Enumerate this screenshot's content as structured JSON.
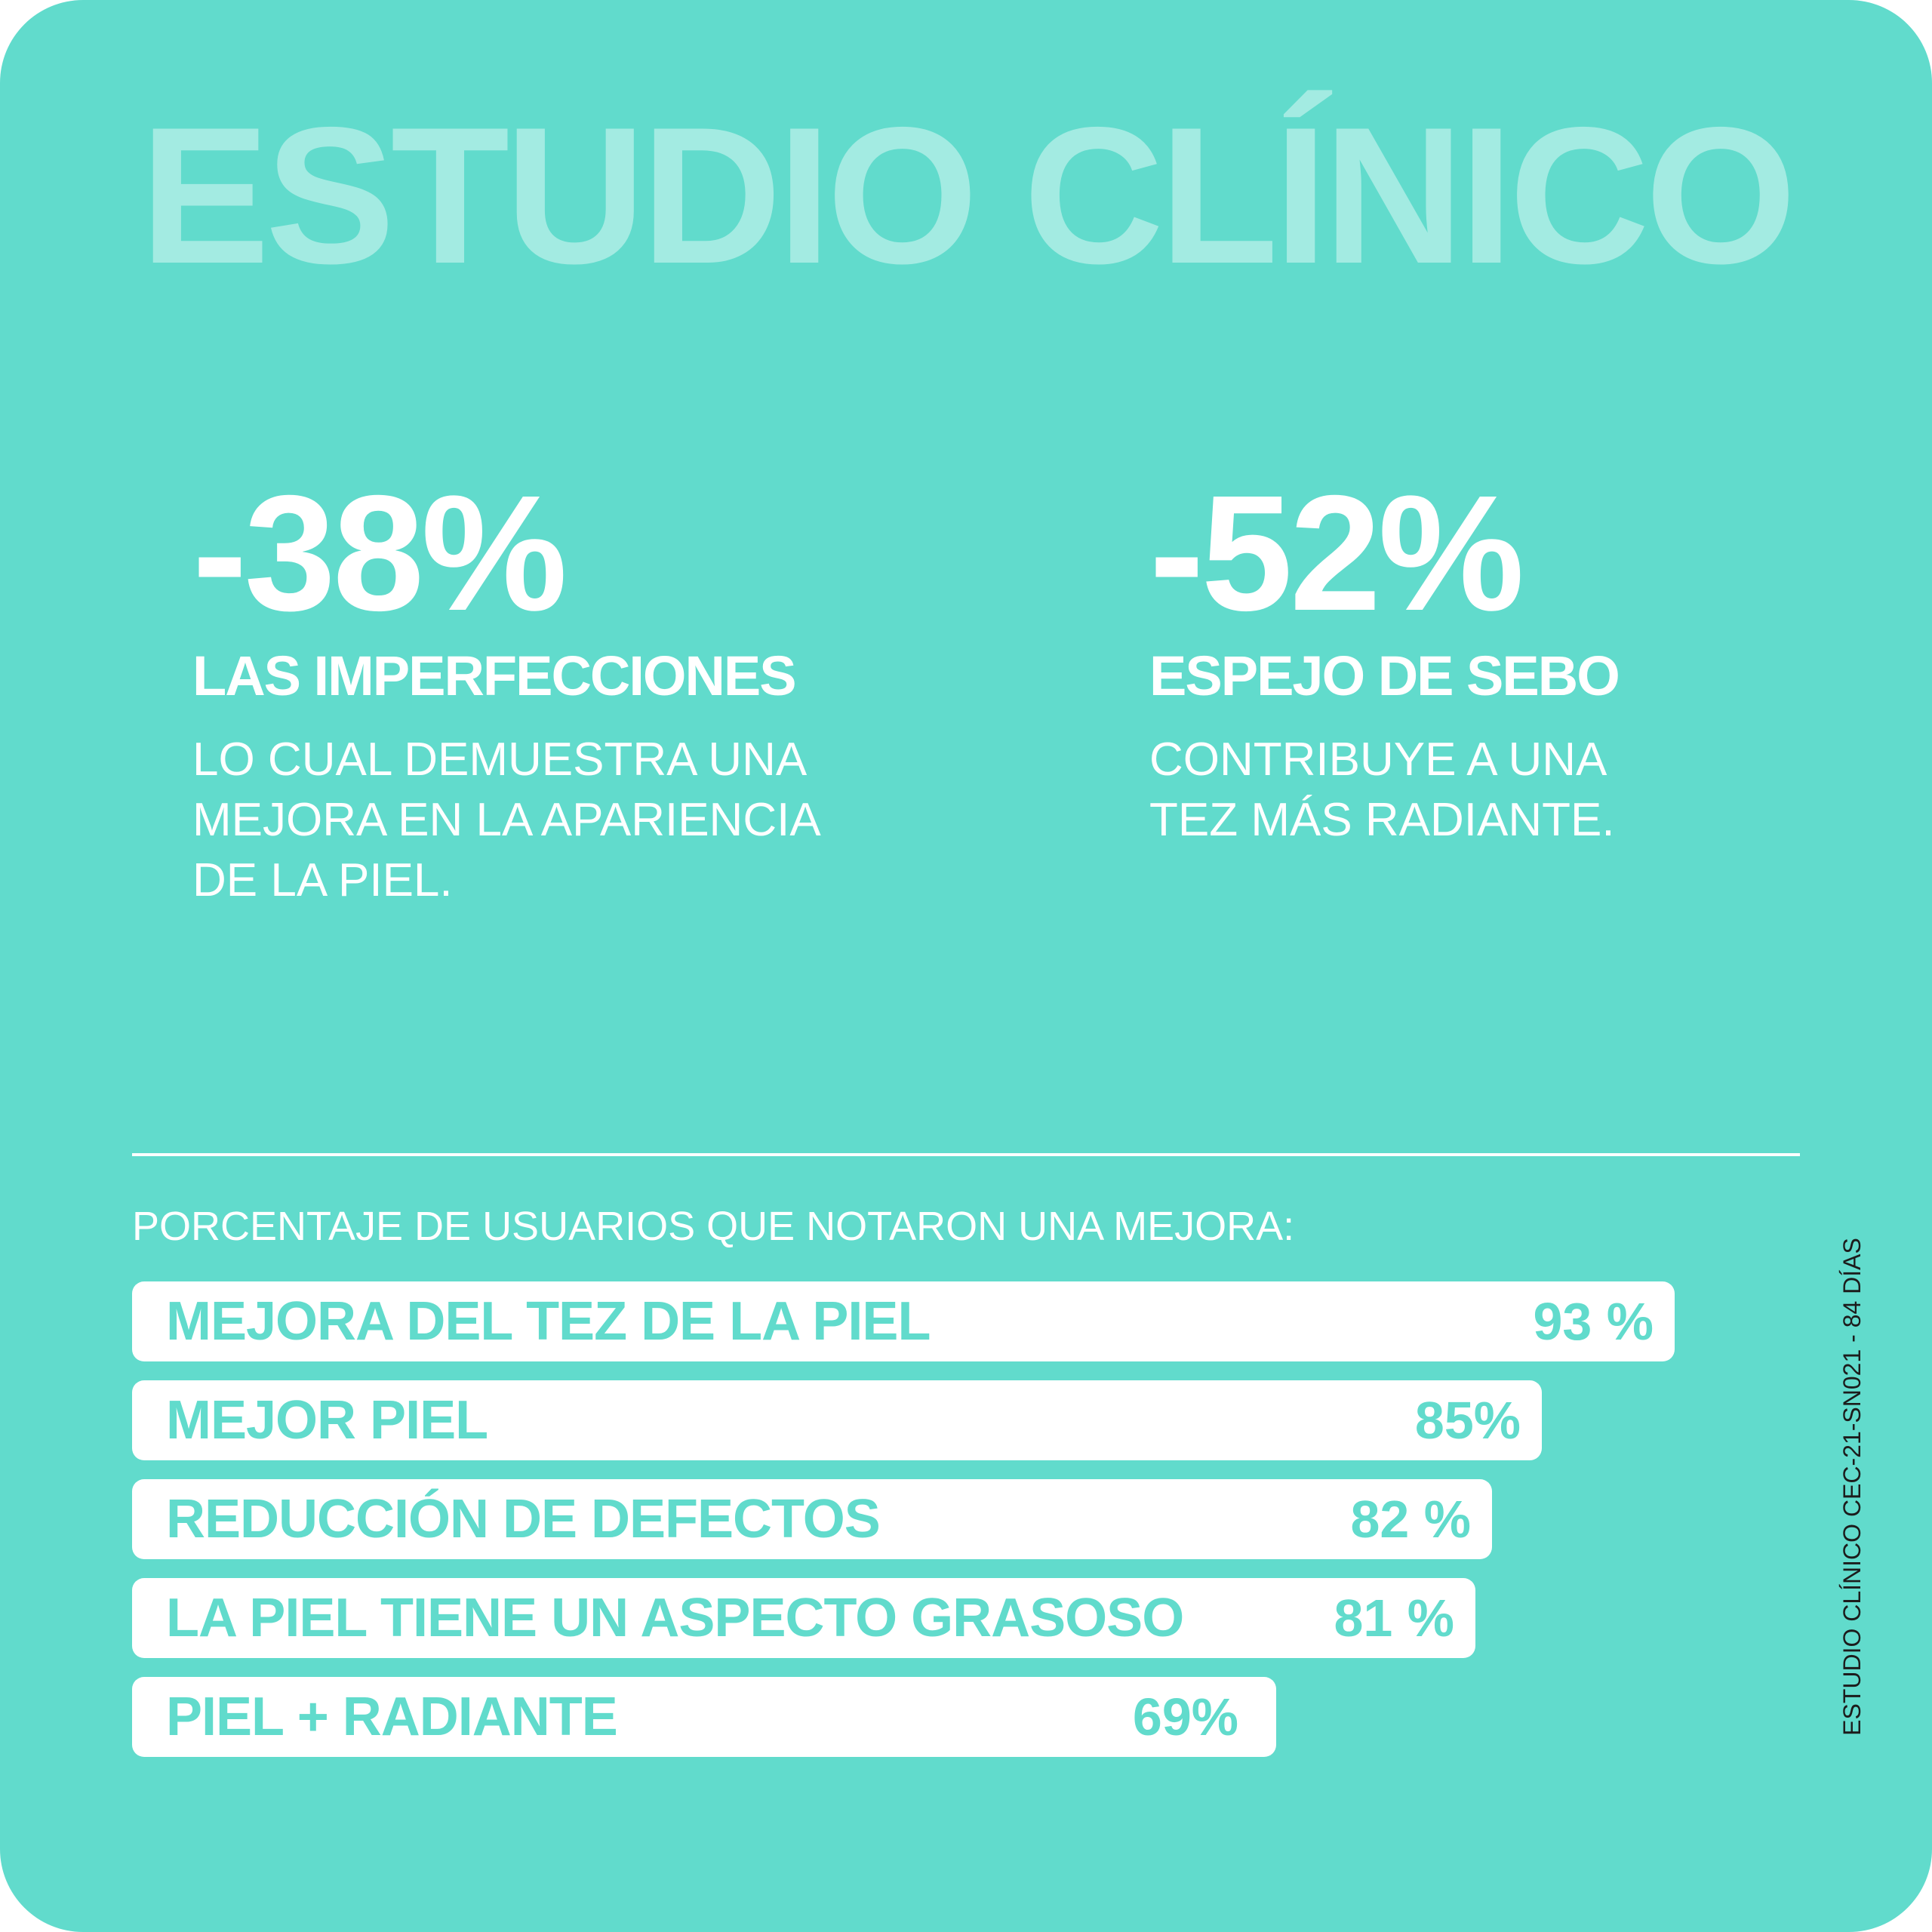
{
  "colors": {
    "background": "#61dbcc",
    "title": "#a3ebe2",
    "text": "#ffffff",
    "bar": "#ffffff",
    "bar_text": "#61dbcc",
    "side_note": "#1c1c1c"
  },
  "header": {
    "title": "ESTUDIO CLÍNICO"
  },
  "stats": [
    {
      "value": "-38%",
      "label": "LAS IMPERFECCIONES",
      "description": "LO CUAL DEMUESTRA UNA\nMEJORA EN LA APARIENCIA\nDE LA PIEL."
    },
    {
      "value": "-52%",
      "label": "ESPEJO DE SEBO",
      "description": "CONTRIBUYE A UNA\nTEZ MÁS RADIANTE."
    }
  ],
  "side_note": "ESTUDIO CLÍNICO CEC-21-SN021 - 84 DÍAS",
  "chart_data": {
    "type": "bar",
    "orientation": "horizontal",
    "title": "PORCENTAJE DE USUARIOS QUE NOTARON UNA MEJORA:",
    "categories": [
      "MEJORA DEL TEZ DE LA PIEL",
      "MEJOR PIEL",
      "REDUCCIÓN DE DEFECTOS",
      "LA PIEL TIENE UN ASPECTO GRASOSO",
      "PIEL + RADIANTE"
    ],
    "values": [
      93,
      85,
      82,
      81,
      69
    ],
    "value_labels": [
      "93 %",
      "85%",
      "82 %",
      "81 %",
      "69%"
    ],
    "grid": false,
    "legend": "none"
  }
}
